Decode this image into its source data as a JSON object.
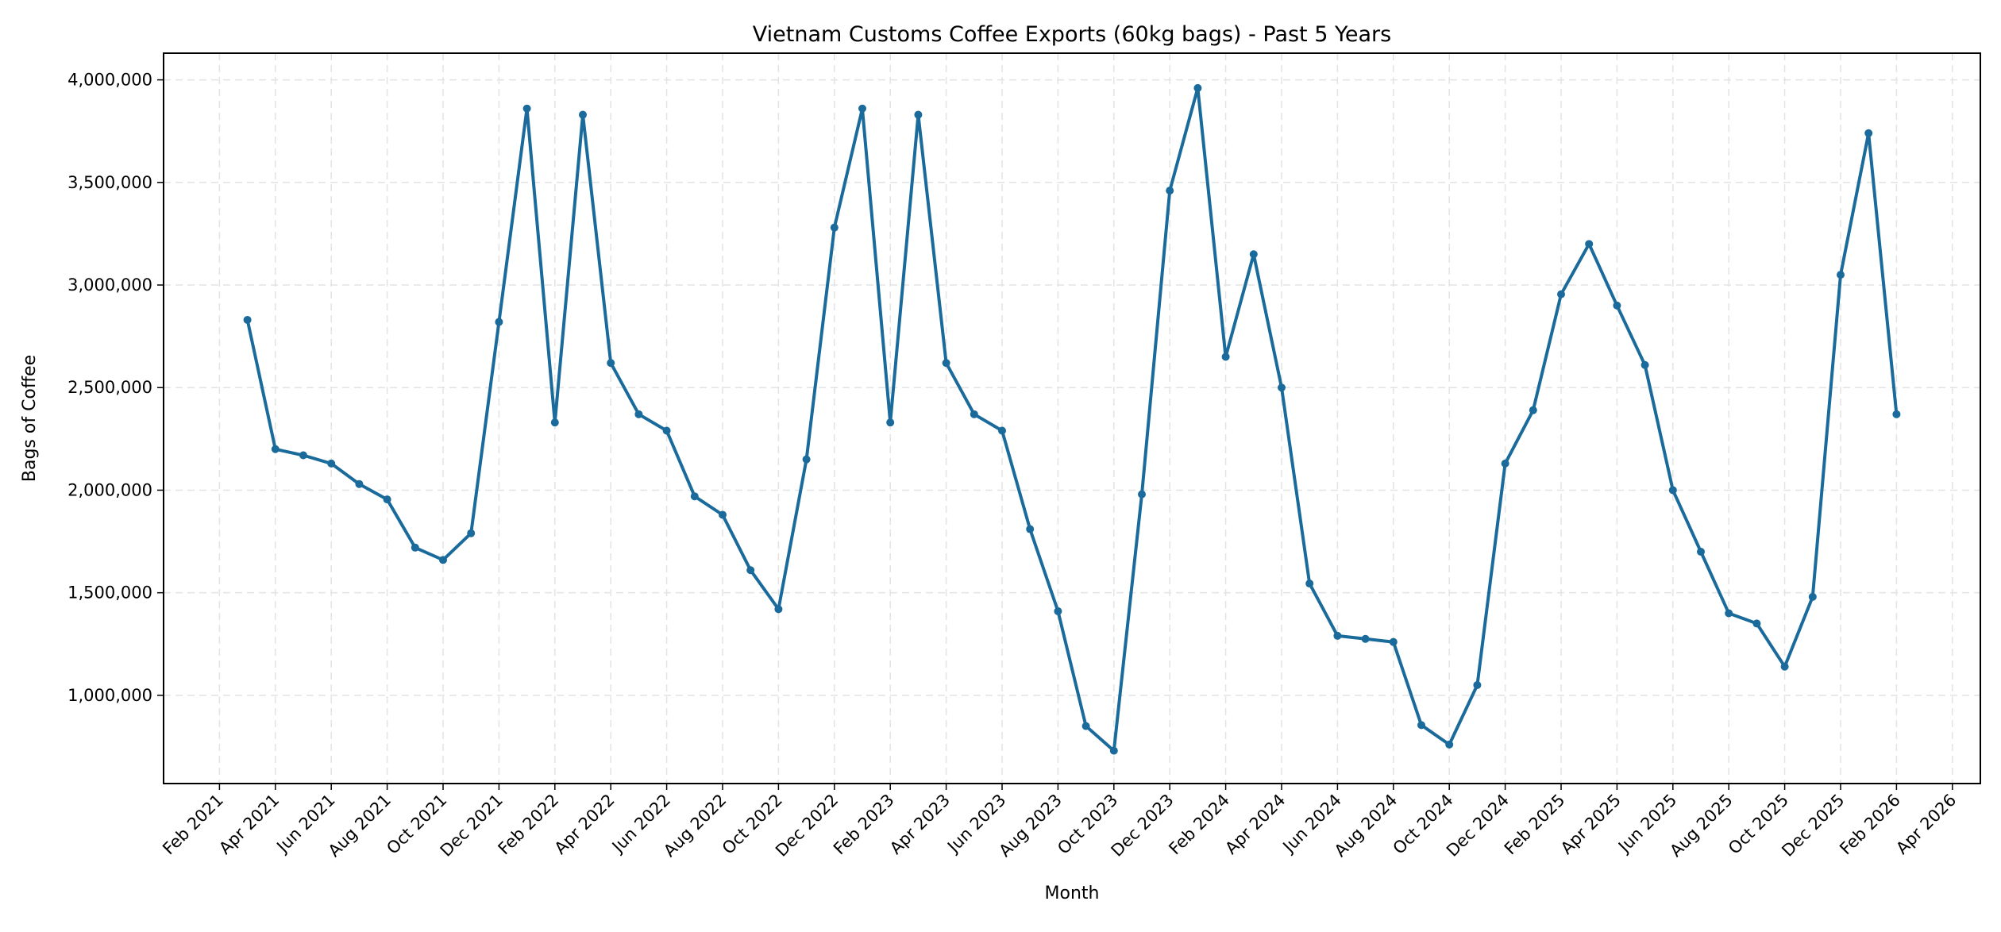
{
  "chart_data": {
    "type": "line",
    "title": "Vietnam Customs Coffee Exports (60kg bags) - Past 5 Years",
    "xlabel": "Month",
    "ylabel": "Bags of Coffee",
    "xlim": [
      "2020-12",
      "2026-05"
    ],
    "ylim": [
      570000,
      4130000
    ],
    "grid": true,
    "line_color": "#1a6b9c",
    "x_ticks": [
      "Feb 2021",
      "Apr 2021",
      "Jun 2021",
      "Aug 2021",
      "Oct 2021",
      "Dec 2021",
      "Feb 2022",
      "Apr 2022",
      "Jun 2022",
      "Aug 2022",
      "Oct 2022",
      "Dec 2022",
      "Feb 2023",
      "Apr 2023",
      "Jun 2023",
      "Aug 2023",
      "Oct 2023",
      "Dec 2023",
      "Feb 2024",
      "Apr 2024",
      "Jun 2024",
      "Aug 2024",
      "Oct 2024",
      "Dec 2024",
      "Feb 2025",
      "Apr 2025",
      "Jun 2025",
      "Aug 2025",
      "Oct 2025",
      "Dec 2025",
      "Feb 2026",
      "Apr 2026"
    ],
    "y_ticks": [
      {
        "value": 1000000,
        "label": "1,000,000"
      },
      {
        "value": 1500000,
        "label": "1,500,000"
      },
      {
        "value": 2000000,
        "label": "2,000,000"
      },
      {
        "value": 2500000,
        "label": "2,500,000"
      },
      {
        "value": 3000000,
        "label": "3,000,000"
      },
      {
        "value": 3500000,
        "label": "3,500,000"
      },
      {
        "value": 4000000,
        "label": "4,000,000"
      }
    ],
    "x": [
      "2021-03",
      "2021-04",
      "2021-05",
      "2021-06",
      "2021-07",
      "2021-08",
      "2021-09",
      "2021-10",
      "2021-11",
      "2021-12",
      "2022-01",
      "2022-02",
      "2022-03",
      "2022-04",
      "2022-05",
      "2022-06",
      "2022-07",
      "2022-08",
      "2022-09",
      "2022-10",
      "2022-11",
      "2022-12",
      "2023-01",
      "2023-02",
      "2023-03",
      "2023-04",
      "2023-05",
      "2023-06",
      "2023-07",
      "2023-08",
      "2023-09",
      "2023-10",
      "2023-11",
      "2023-12",
      "2024-01",
      "2024-02",
      "2024-03",
      "2024-04",
      "2024-05",
      "2024-06",
      "2024-07",
      "2024-08",
      "2024-09",
      "2024-10",
      "2024-11",
      "2024-12",
      "2025-01",
      "2025-02",
      "2025-03",
      "2025-04",
      "2025-05",
      "2025-06",
      "2025-07",
      "2025-08",
      "2025-09",
      "2025-10",
      "2025-11",
      "2025-12",
      "2026-01",
      "2026-02"
    ],
    "values": [
      2830000,
      2200000,
      2170000,
      2130000,
      2030000,
      1955000,
      1720000,
      1660000,
      1790000,
      2820000,
      3860000,
      2330000,
      3830000,
      2620000,
      2370000,
      2290000,
      1970000,
      1880000,
      1610000,
      1420000,
      2150000,
      3280000,
      3860000,
      2330000,
      3830000,
      2620000,
      2370000,
      2290000,
      1810000,
      1410000,
      850000,
      730000,
      1980000,
      3460000,
      3960000,
      2650000,
      3150000,
      2500000,
      1545000,
      1290000,
      1275000,
      1260000,
      855000,
      760000,
      1050000,
      2130000,
      2390000,
      2955000,
      3200000,
      2900000,
      2610000,
      2000000,
      1700000,
      1400000,
      1350000,
      1140000,
      1480000,
      3050000,
      3740000,
      2370000
    ]
  }
}
